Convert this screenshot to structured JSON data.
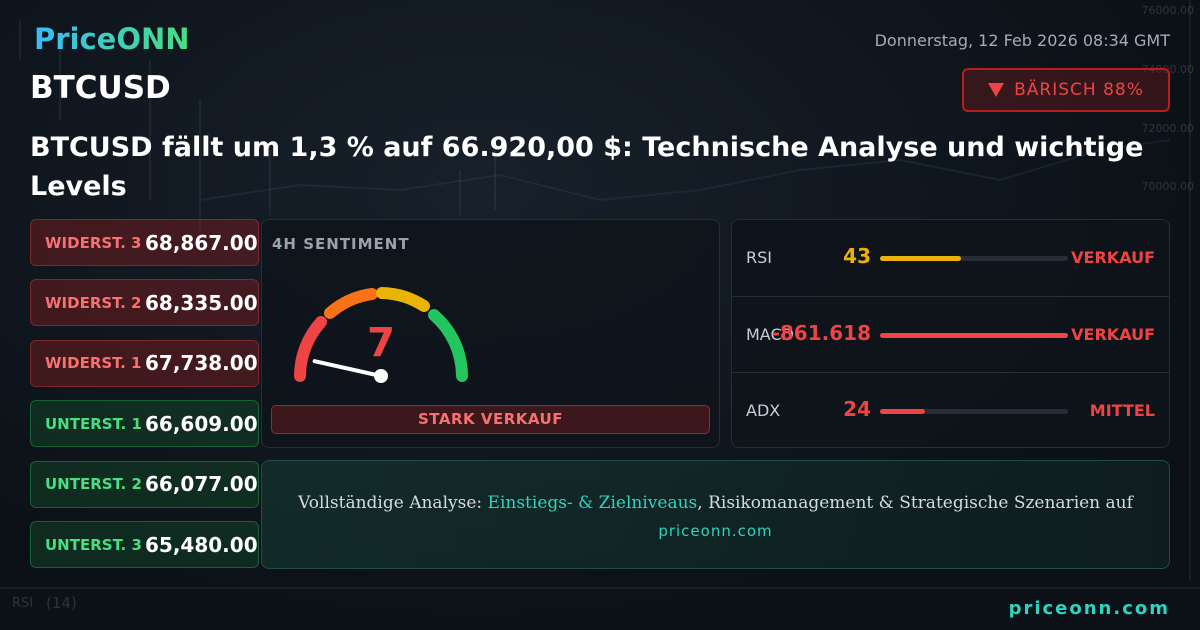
{
  "header": {
    "brand": "PriceONN",
    "date": "Donnerstag, 12 Feb 2026 08:34 GMT",
    "symbol": "BTCUSD",
    "badge": "BÄRISCH 88%"
  },
  "headline": "BTCUSD fällt um 1,3 % auf 66.920,00 $: Technische Analyse und wichtige Levels",
  "levels": [
    {
      "label": "WIDERST. 3",
      "value": "68,867.00",
      "kind": "resistance"
    },
    {
      "label": "WIDERST. 2",
      "value": "68,335.00",
      "kind": "resistance"
    },
    {
      "label": "WIDERST. 1",
      "value": "67,738.00",
      "kind": "resistance"
    },
    {
      "label": "UNTERST. 1",
      "value": "66,609.00",
      "kind": "support"
    },
    {
      "label": "UNTERST. 2",
      "value": "66,077.00",
      "kind": "support"
    },
    {
      "label": "UNTERST. 3",
      "value": "65,480.00",
      "kind": "support"
    }
  ],
  "sentiment": {
    "title": "4H SENTIMENT",
    "value": 7,
    "scale": [
      0,
      100
    ],
    "label": "STARK VERKAUF"
  },
  "indicators": [
    {
      "name": "RSI",
      "value": "43",
      "fill": 0.43,
      "signal": "VERKAUF",
      "color": "#eab308",
      "signal_color": "#ef4444"
    },
    {
      "name": "MACD",
      "value": "-861.618",
      "fill": 1,
      "signal": "VERKAUF",
      "color": "#ef4444",
      "signal_color": "#ef4444"
    },
    {
      "name": "ADX",
      "value": "24",
      "fill": 0.24,
      "signal": "MITTEL",
      "color": "#ef4444",
      "signal_color": "#ef4444"
    }
  ],
  "cta": {
    "text_before": "Vollständige Analyse: ",
    "highlight": "Einstiegs- & Zielniveaus",
    "text_after": ", Risikomanagement & Strategische Szenarien auf",
    "link": "priceonn.com"
  },
  "footer": {
    "site": "priceonn.com"
  },
  "background": {
    "axis_labels": [
      "76000.00",
      "74000.00",
      "72000.00",
      "70000.00"
    ],
    "rsi_label": "RSI",
    "rsi_period": "(14)"
  }
}
